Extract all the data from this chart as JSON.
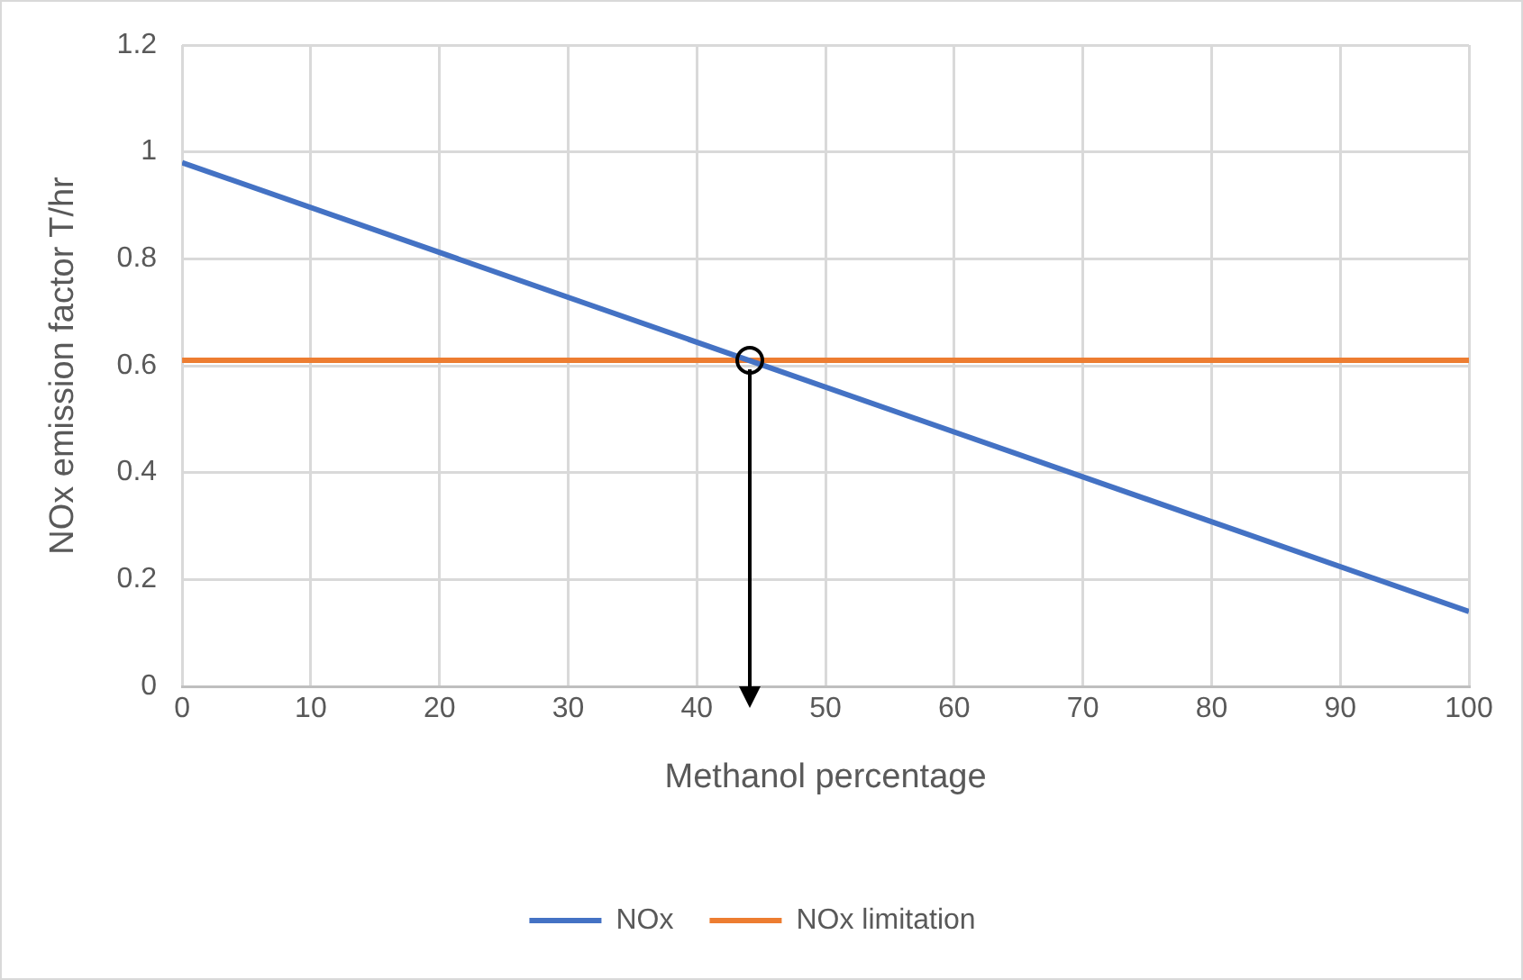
{
  "chart_data": {
    "type": "line",
    "xlabel": "Methanol percentage",
    "ylabel": "NOx emission factor T/hr",
    "x": [
      0,
      100
    ],
    "series": [
      {
        "name": "NOx",
        "color": "#4472c4",
        "values": [
          0.98,
          0.14
        ]
      },
      {
        "name": "NOx limitation",
        "color": "#ed7d31",
        "values": [
          0.61,
          0.61
        ]
      }
    ],
    "xlim": [
      0,
      100
    ],
    "xticks": [
      0,
      10,
      20,
      30,
      40,
      50,
      60,
      70,
      80,
      90,
      100
    ],
    "ylim": [
      0,
      1.2
    ],
    "yticks": [
      0,
      0.2,
      0.4,
      0.6,
      0.8,
      1,
      1.2
    ],
    "grid": true,
    "legend": "bottom",
    "marker": "none",
    "line_style": "solid"
  }
}
